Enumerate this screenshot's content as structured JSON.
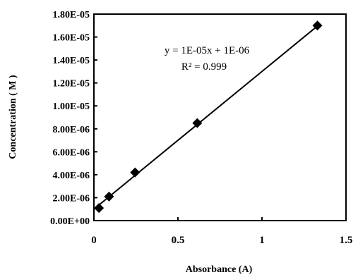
{
  "chart_data": {
    "type": "scatter",
    "xlabel": "Absorbance (A)",
    "ylabel": "Concentration ( M )",
    "xlim": [
      0,
      1.5
    ],
    "ylim": [
      0,
      1.8e-05
    ],
    "x_ticks": [
      "0",
      "0.5",
      "1",
      "1.5"
    ],
    "y_ticks": [
      "0.00E+00",
      "2.00E-06",
      "4.00E-06",
      "6.00E-06",
      "8.00E-06",
      "1.00E-05",
      "1.20E-05",
      "1.40E-05",
      "1.60E-05",
      "1.80E-05"
    ],
    "points": [
      {
        "x": 0.03,
        "y": 1.1e-06
      },
      {
        "x": 0.09,
        "y": 2.1e-06
      },
      {
        "x": 0.245,
        "y": 4.2e-06
      },
      {
        "x": 0.615,
        "y": 8.5e-06
      },
      {
        "x": 1.33,
        "y": 1.7e-05
      }
    ],
    "trendline": {
      "slope": 1.2e-05,
      "intercept": 1e-06,
      "x_range": [
        0,
        1.33
      ],
      "equation": "y = 1E-05x + 1E-06",
      "r_squared": "R² = 0.999"
    },
    "grid": false,
    "legend": "none",
    "marker": "diamond",
    "color": "#000000"
  }
}
